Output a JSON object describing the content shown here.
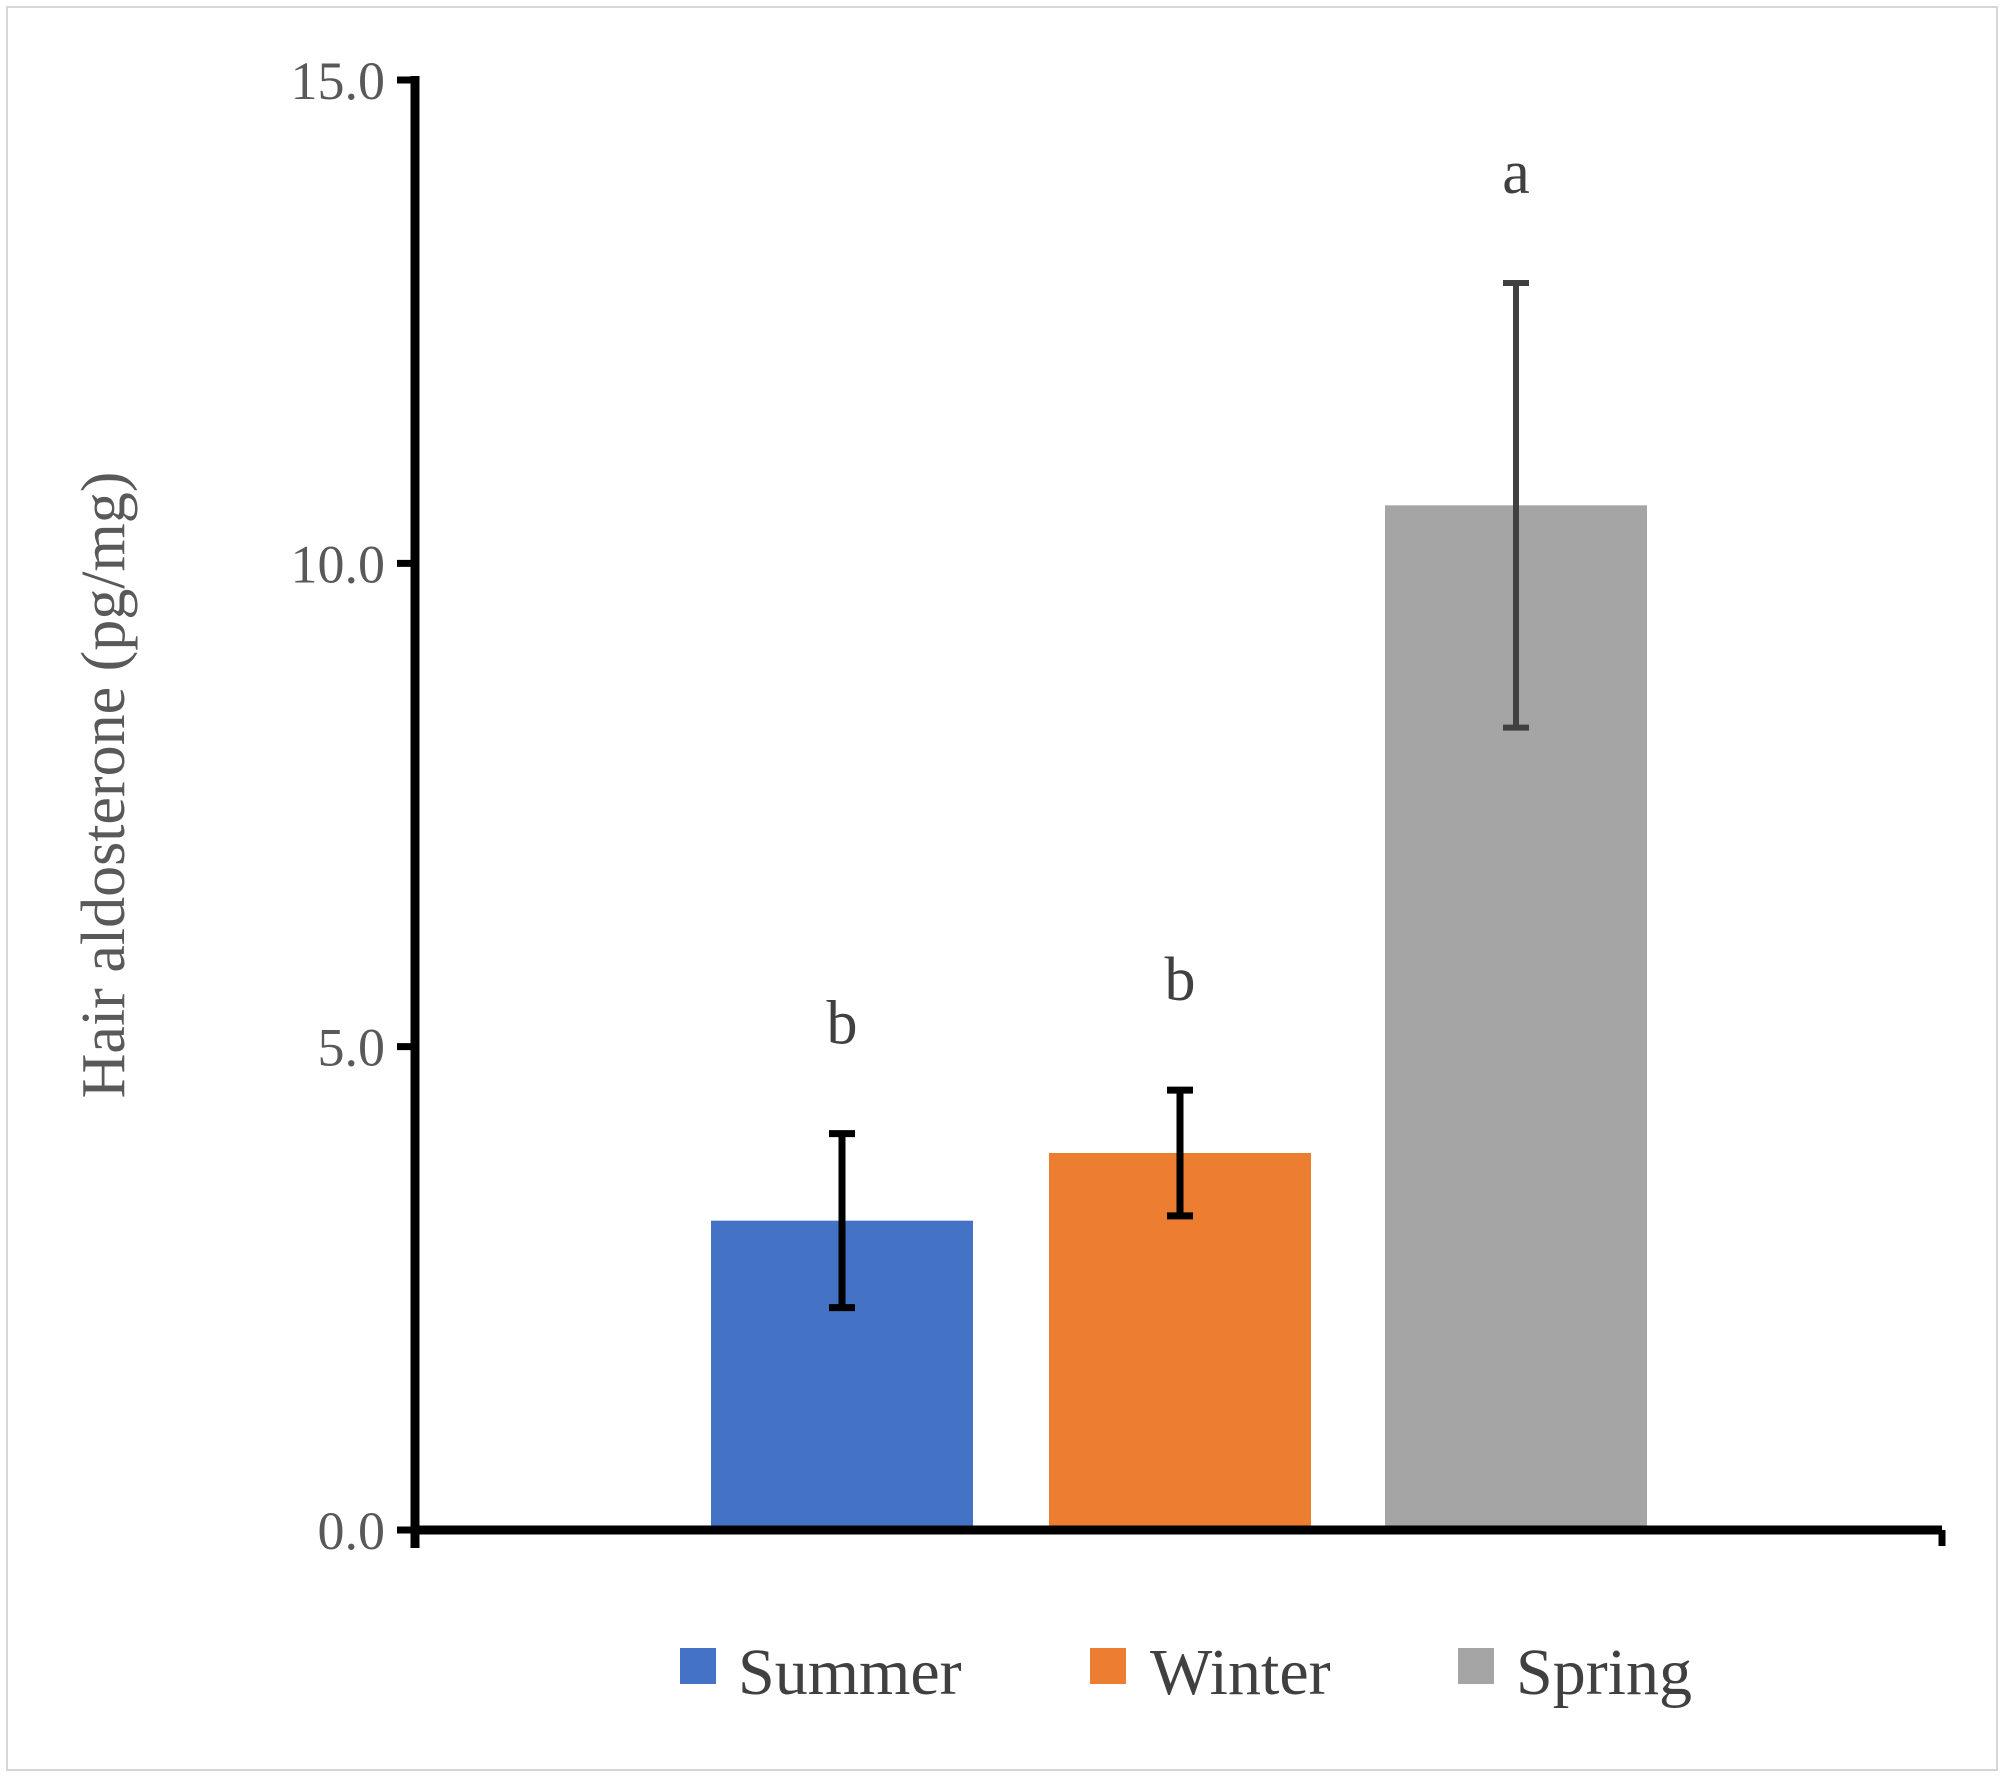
{
  "chart_data": {
    "type": "bar",
    "categories": [
      "Summer",
      "Winter",
      "Spring"
    ],
    "values": [
      3.2,
      3.9,
      10.6
    ],
    "errors": [
      0.9,
      0.65,
      2.3
    ],
    "significance_labels": [
      "b",
      "b",
      "a"
    ],
    "colors": [
      "#4472c4",
      "#ed7d31",
      "#a5a5a5"
    ],
    "errorbar_colors": [
      "#000000",
      "#000000",
      "#404040"
    ],
    "ylabel": "Hair aldosterone (pg/mg)",
    "ylim": [
      0,
      15
    ],
    "yticks": [
      "0.0",
      "5.0",
      "10.0",
      "15.0"
    ],
    "legend": [
      "Summer",
      "Winter",
      "Spring"
    ],
    "legend_position": "bottom",
    "grid": false
  }
}
